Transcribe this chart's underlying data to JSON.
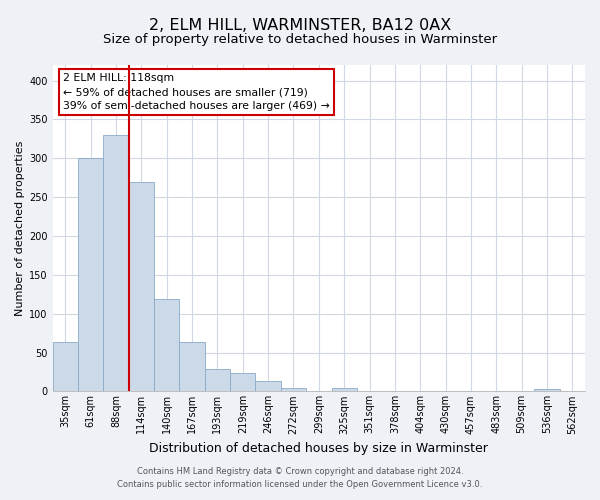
{
  "title": "2, ELM HILL, WARMINSTER, BA12 0AX",
  "subtitle": "Size of property relative to detached houses in Warminster",
  "xlabel": "Distribution of detached houses by size in Warminster",
  "ylabel": "Number of detached properties",
  "footer_line1": "Contains HM Land Registry data © Crown copyright and database right 2024.",
  "footer_line2": "Contains public sector information licensed under the Open Government Licence v3.0.",
  "bin_labels": [
    "35sqm",
    "61sqm",
    "88sqm",
    "114sqm",
    "140sqm",
    "167sqm",
    "193sqm",
    "219sqm",
    "246sqm",
    "272sqm",
    "299sqm",
    "325sqm",
    "351sqm",
    "378sqm",
    "404sqm",
    "430sqm",
    "457sqm",
    "483sqm",
    "509sqm",
    "536sqm",
    "562sqm"
  ],
  "bar_values": [
    63,
    300,
    330,
    270,
    119,
    64,
    29,
    24,
    13,
    5,
    0,
    4,
    0,
    0,
    0,
    0,
    0,
    0,
    0,
    3,
    0
  ],
  "bar_color": "#ccd9e8",
  "bar_edge_color": "#8aaac8",
  "vline_color": "#cc0000",
  "vline_pos": 2.5,
  "annotation_line1": "2 ELM HILL: 118sqm",
  "annotation_line2": "← 59% of detached houses are smaller (719)",
  "annotation_line3": "39% of semi-detached houses are larger (469) →",
  "ylim": [
    0,
    420
  ],
  "yticks": [
    0,
    50,
    100,
    150,
    200,
    250,
    300,
    350,
    400
  ],
  "bg_color": "#eef2f7",
  "plot_bg_color": "#ffffff",
  "grid_color": "#d0d8e4",
  "title_fontsize": 11.5,
  "subtitle_fontsize": 9.5,
  "xlabel_fontsize": 9,
  "ylabel_fontsize": 8,
  "tick_fontsize": 7
}
